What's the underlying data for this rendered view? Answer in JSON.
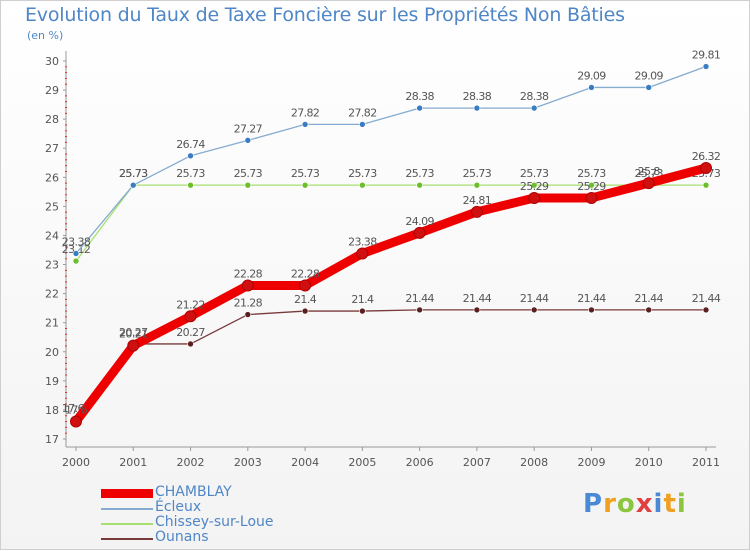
{
  "title": "Evolution du Taux de Taxe Foncière sur les Propriétés Non Bâties",
  "unit_label": "(en %)",
  "logo": {
    "text": "Proxiti",
    "letters": [
      "P",
      "r",
      "o",
      "x",
      "i",
      "t",
      "i"
    ],
    "colors": [
      "#4a8ad4",
      "#f0a020",
      "#8cc63f",
      "#e04040",
      "#4a8ad4",
      "#f0a020",
      "#8cc63f"
    ]
  },
  "chart_data": {
    "type": "line",
    "x": [
      "2000",
      "2001",
      "2002",
      "2003",
      "2004",
      "2005",
      "2006",
      "2007",
      "2008",
      "2009",
      "2010",
      "2011"
    ],
    "ylim": [
      17,
      30
    ],
    "yticks": [
      "17",
      "18",
      "19",
      "20",
      "21",
      "22",
      "23",
      "24",
      "25",
      "26",
      "27",
      "28",
      "29",
      "30"
    ],
    "grid": false,
    "legend_position": "bottom",
    "series": [
      {
        "name": "CHAMBLAY",
        "color": "#ee0000",
        "marker": "#d01010",
        "width": "thick",
        "values": [
          17.6,
          20.21,
          21.22,
          22.28,
          22.28,
          23.38,
          24.09,
          24.81,
          25.29,
          25.29,
          25.8,
          26.32
        ],
        "labels": [
          "17.6",
          "20.21",
          "21.22",
          "22.28",
          "22.28",
          "23.38",
          "24.09",
          "24.81",
          "25.29",
          "25.29",
          "25.8",
          "26.32"
        ]
      },
      {
        "name": "Écleux",
        "color": "#86abd0",
        "marker": "#3a7cc2",
        "width": "thin",
        "values": [
          23.38,
          25.73,
          26.74,
          27.27,
          27.82,
          27.82,
          28.38,
          28.38,
          28.38,
          29.09,
          29.09,
          29.81
        ],
        "labels": [
          "23.38",
          "25.73",
          "26.74",
          "27.27",
          "27.82",
          "27.82",
          "28.38",
          "28.38",
          "28.38",
          "29.09",
          "29.09",
          "29.81"
        ]
      },
      {
        "name": "Chissey-sur-Loue",
        "color": "#a8e070",
        "marker": "#6cbf2a",
        "width": "thin",
        "values": [
          23.12,
          25.73,
          25.73,
          25.73,
          25.73,
          25.73,
          25.73,
          25.73,
          25.73,
          25.73,
          25.73,
          25.73
        ],
        "labels": [
          "23.12",
          "25.73",
          "25.73",
          "25.73",
          "25.73",
          "25.73",
          "25.73",
          "25.73",
          "25.73",
          "25.73",
          "25.73",
          "25.73"
        ]
      },
      {
        "name": "Ounans",
        "color": "#7a3a3a",
        "marker": "#5a2020",
        "width": "thin",
        "values": [
          17.65,
          20.27,
          20.27,
          21.28,
          21.4,
          21.4,
          21.44,
          21.44,
          21.44,
          21.44,
          21.44,
          21.44
        ],
        "labels": [
          "17.65",
          "20.27",
          "20.27",
          "21.28",
          "21.4",
          "21.4",
          "21.44",
          "21.44",
          "21.44",
          "21.44",
          "21.44",
          "21.44"
        ]
      }
    ]
  }
}
